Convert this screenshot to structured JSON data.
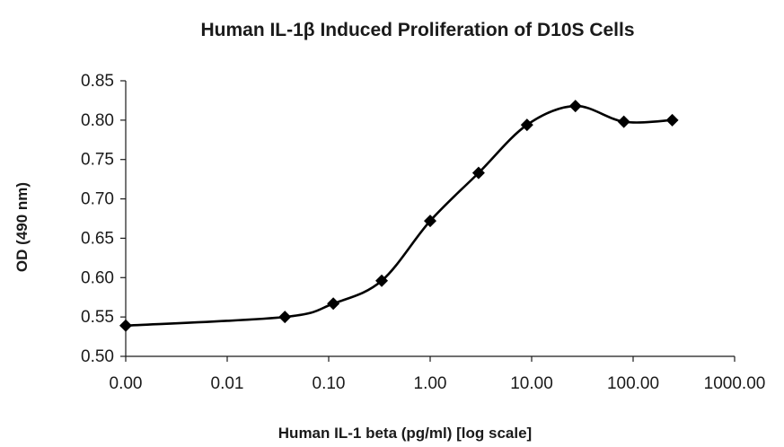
{
  "chart_data": {
    "type": "line",
    "title": "Human IL-1β Induced Proliferation of D10S Cells",
    "xlabel": "Human IL-1 beta (pg/ml) [log scale]",
    "ylabel": "OD (490 nm)",
    "x_scale": "log",
    "x_tick_labels": [
      "0.00",
      "0.01",
      "0.10",
      "1.00",
      "10.00",
      "100.00",
      "1000.00"
    ],
    "y_tick_labels": [
      "0.50",
      "0.55",
      "0.60",
      "0.65",
      "0.70",
      "0.75",
      "0.80",
      "0.85"
    ],
    "ylim": [
      0.5,
      0.85
    ],
    "grid": false,
    "legend": "none",
    "series": [
      {
        "x": [
          0.001,
          0.037,
          0.111,
          0.333,
          1.0,
          3.0,
          9.0,
          27.0,
          81.0,
          243.0
        ],
        "y": [
          0.539,
          0.55,
          0.567,
          0.596,
          0.672,
          0.733,
          0.794,
          0.818,
          0.798,
          0.8
        ],
        "marker": "diamond",
        "color": "#000000"
      }
    ]
  }
}
